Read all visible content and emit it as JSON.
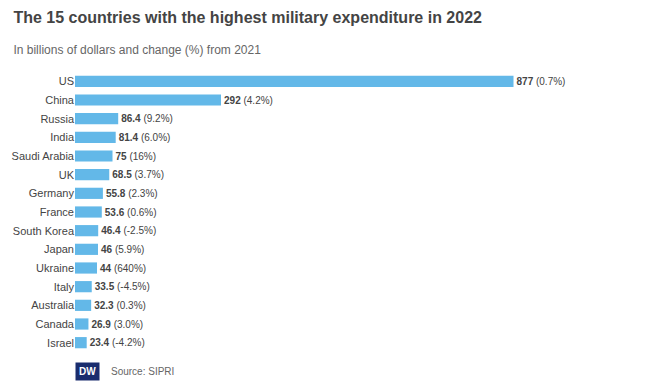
{
  "chart_data": {
    "type": "bar",
    "orientation": "horizontal",
    "title": "The 15 countries with the highest military expenditure in 2022",
    "subtitle": "In billions of dollars and change (%) from 2021",
    "source": "Source: SIPRI",
    "logo": "DW",
    "categories": [
      "US",
      "China",
      "Russia",
      "India",
      "Saudi Arabia",
      "UK",
      "Germany",
      "France",
      "South Korea",
      "Japan",
      "Ukraine",
      "Italy",
      "Australia",
      "Canada",
      "Israel"
    ],
    "values": [
      877,
      292,
      86.4,
      81.4,
      75,
      68.5,
      55.8,
      53.6,
      46.4,
      46,
      44,
      33.5,
      32.3,
      26.9,
      23.4
    ],
    "annotations": [
      " (0.7%)",
      " (4.2%)",
      " (9.2%)",
      " (6.0%)",
      " (16%)",
      " (3.7%)",
      " (2.3%)",
      " (0.6%)",
      " (-2.5%)",
      " (5.9%)",
      " (640%)",
      " (-4.5%)",
      " (0.3%)",
      " (3.0%)",
      " (-4.2%)"
    ],
    "color": "#63b8e8",
    "xlim": [
      0,
      1050
    ],
    "grid": false,
    "data_labels": true,
    "tick_labels": "y"
  }
}
